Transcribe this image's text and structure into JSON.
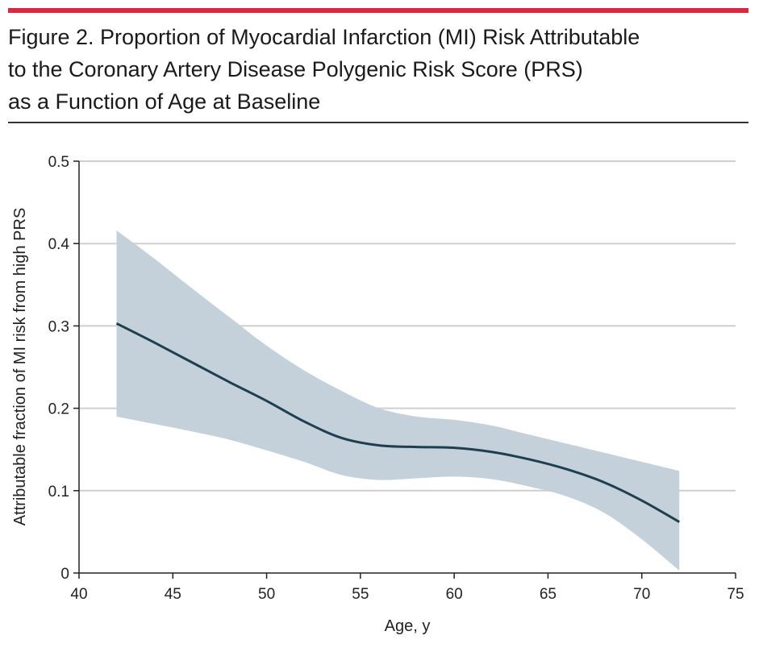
{
  "figure": {
    "title_line1": "Figure 2. Proportion of Myocardial Infarction (MI) Risk Attributable",
    "title_line2": "to the Coronary Artery Disease Polygenic Risk Score (PRS)",
    "title_line3": "as a Function of Age at Baseline"
  },
  "colors": {
    "accent_rule": "#e0263f",
    "line": "#1d3f4f",
    "band": "#c5d1da",
    "grid": "#cfcfcf"
  },
  "chart_data": {
    "type": "line",
    "title": "Figure 2. Proportion of Myocardial Infarction (MI) Risk Attributable to the Coronary Artery Disease Polygenic Risk Score (PRS) as a Function of Age at Baseline",
    "xlabel": "Age, y",
    "ylabel": "Attributable fraction of MI risk from high PRS",
    "xlim": [
      40,
      75
    ],
    "ylim": [
      0,
      0.5
    ],
    "xticks": [
      "40",
      "45",
      "50",
      "55",
      "60",
      "65",
      "70",
      "75"
    ],
    "yticks": [
      "0",
      "0.1",
      "0.2",
      "0.3",
      "0.4",
      "0.5"
    ],
    "grid": "horizontal",
    "legend": "none",
    "series": [
      {
        "x": [
          42,
          44,
          46,
          48,
          50,
          52,
          54,
          56,
          58,
          60,
          62,
          64,
          66,
          68,
          70,
          72
        ],
        "y": [
          0.303,
          0.28,
          0.256,
          0.232,
          0.209,
          0.184,
          0.164,
          0.155,
          0.153,
          0.152,
          0.147,
          0.138,
          0.126,
          0.11,
          0.088,
          0.062
        ],
        "ci_lower": [
          0.19,
          0.181,
          0.172,
          0.162,
          0.149,
          0.135,
          0.119,
          0.113,
          0.115,
          0.117,
          0.114,
          0.105,
          0.093,
          0.073,
          0.041,
          0.003
        ],
        "ci_upper": [
          0.416,
          0.382,
          0.346,
          0.311,
          0.276,
          0.246,
          0.221,
          0.2,
          0.19,
          0.186,
          0.179,
          0.168,
          0.157,
          0.146,
          0.135,
          0.124
        ]
      }
    ]
  }
}
